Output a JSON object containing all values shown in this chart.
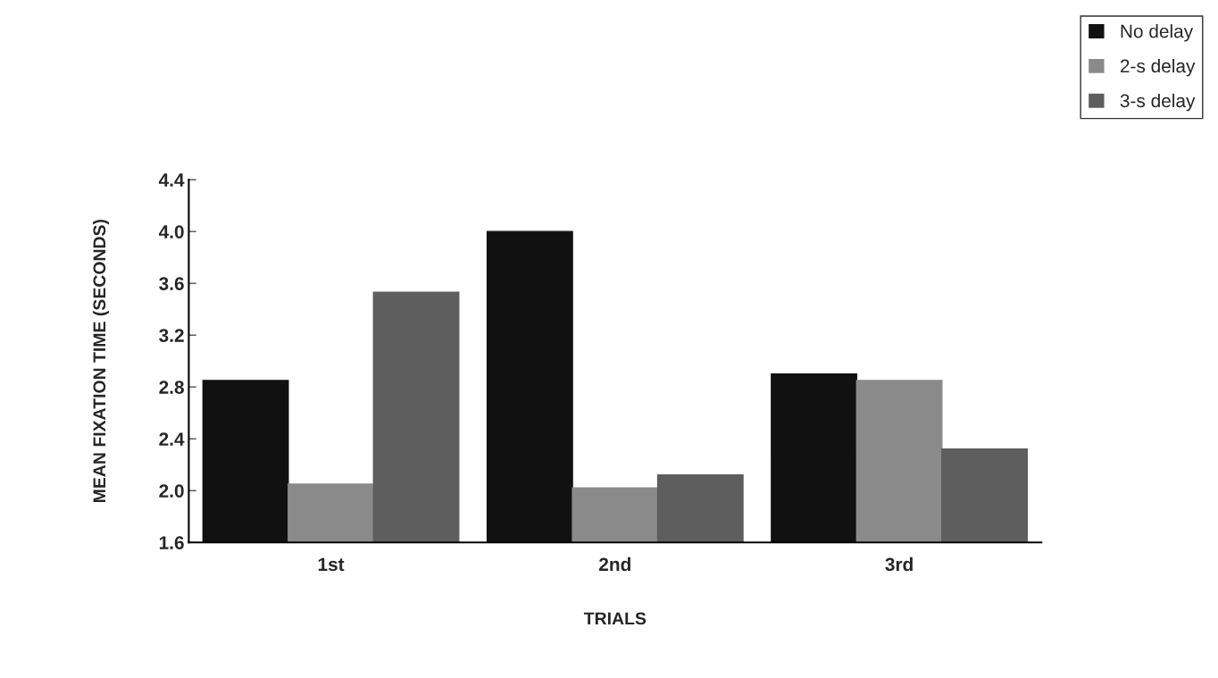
{
  "chart_data": {
    "type": "bar",
    "xlabel": "TRIALS",
    "ylabel": "MEAN FIXATION TIME (SECONDS)",
    "categories": [
      "1st",
      "2nd",
      "3rd"
    ],
    "series": [
      {
        "name": "No delay",
        "color": "#111111",
        "values": [
          2.85,
          4.0,
          2.9
        ]
      },
      {
        "name": "2-s delay",
        "color": "#8a8a8a",
        "values": [
          2.05,
          2.02,
          2.85
        ]
      },
      {
        "name": "3-s delay",
        "color": "#5e5e5e",
        "values": [
          3.53,
          2.12,
          2.32
        ]
      }
    ],
    "ylim": [
      1.6,
      4.4
    ],
    "yticks": [
      {
        "value": 1.6,
        "label": "1.6"
      },
      {
        "value": 2.0,
        "label": "2.0"
      },
      {
        "value": 2.4,
        "label": "2.4"
      },
      {
        "value": 2.8,
        "label": "2.8"
      },
      {
        "value": 3.2,
        "label": "3.2"
      },
      {
        "value": 3.6,
        "label": "3.6"
      },
      {
        "value": 4.0,
        "label": "4.0"
      },
      {
        "value": 4.4,
        "label": "4.4"
      }
    ],
    "grid": false,
    "legend": "top right"
  }
}
